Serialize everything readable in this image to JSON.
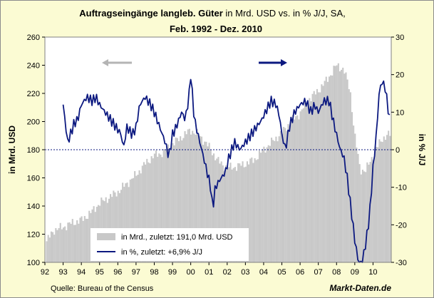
{
  "chart_data": {
    "type": "bar+line",
    "title_bold": "Auftragseingänge langleb. Güter",
    "title_normal": " in Mrd. USD vs. in % J/J, SA,",
    "subtitle": "Feb. 1992 - Dez. 2010",
    "ylabel_left": "in Mrd. USD",
    "ylabel_right": "in % J/J",
    "source": "Quelle: Bureau of the Census",
    "brand": "Markt-Daten.de",
    "x_categories": [
      "92",
      "93",
      "94",
      "95",
      "96",
      "97",
      "98",
      "99",
      "00",
      "01",
      "02",
      "03",
      "04",
      "05",
      "06",
      "07",
      "08",
      "09",
      "10"
    ],
    "y_left_ticks": [
      "100",
      "120",
      "140",
      "160",
      "180",
      "200",
      "220",
      "240",
      "260"
    ],
    "y_right_ticks": [
      "-30",
      "-20",
      "-10",
      "0",
      "10",
      "20",
      "30"
    ],
    "ylim_left": [
      100,
      260
    ],
    "ylim_right": [
      -30,
      30
    ],
    "zero_line": 0,
    "legend": [
      {
        "label": "in Mrd., zuletzt: 191,0  Mrd. USD",
        "kind": "bar"
      },
      {
        "label": "in %, zuletzt: +6,9% J/J",
        "kind": "line"
      }
    ],
    "colors": {
      "bars": "#c8c8c8",
      "line": "#0c1980",
      "arrow_left": "#b4b4b4",
      "arrow_right": "#0c1980",
      "background": "#fbfbd3"
    },
    "series": [
      {
        "name": "in Mrd. USD",
        "axis": "left",
        "monthly_anchors": [
          [
            1992.1,
            115
          ],
          [
            1992.5,
            123
          ],
          [
            1993.0,
            125
          ],
          [
            1993.5,
            128
          ],
          [
            1994.0,
            130
          ],
          [
            1994.5,
            135
          ],
          [
            1995.0,
            142
          ],
          [
            1995.5,
            146
          ],
          [
            1996.0,
            150
          ],
          [
            1996.5,
            156
          ],
          [
            1997.0,
            162
          ],
          [
            1997.5,
            170
          ],
          [
            1998.0,
            176
          ],
          [
            1998.5,
            178
          ],
          [
            1999.0,
            184
          ],
          [
            1999.5,
            189
          ],
          [
            2000.0,
            194
          ],
          [
            2000.5,
            190
          ],
          [
            2001.0,
            182
          ],
          [
            2001.5,
            172
          ],
          [
            2002.0,
            167
          ],
          [
            2002.5,
            168
          ],
          [
            2003.0,
            170
          ],
          [
            2003.5,
            173
          ],
          [
            2004.0,
            180
          ],
          [
            2004.5,
            186
          ],
          [
            2005.0,
            192
          ],
          [
            2005.5,
            200
          ],
          [
            2006.0,
            206
          ],
          [
            2006.5,
            216
          ],
          [
            2007.0,
            222
          ],
          [
            2007.5,
            230
          ],
          [
            2008.0,
            240
          ],
          [
            2008.4,
            237
          ],
          [
            2008.75,
            222
          ],
          [
            2009.0,
            190
          ],
          [
            2009.3,
            166
          ],
          [
            2009.6,
            165
          ],
          [
            2010.0,
            176
          ],
          [
            2010.5,
            188
          ],
          [
            2010.95,
            191
          ]
        ]
      },
      {
        "name": "in % J/J",
        "axis": "right",
        "monthly_anchors": [
          [
            1993.0,
            12
          ],
          [
            1993.1,
            8
          ],
          [
            1993.25,
            2
          ],
          [
            1993.4,
            4
          ],
          [
            1993.6,
            7
          ],
          [
            1993.8,
            8
          ],
          [
            1994.0,
            12
          ],
          [
            1994.3,
            14
          ],
          [
            1994.6,
            13
          ],
          [
            1994.8,
            14
          ],
          [
            1995.0,
            12
          ],
          [
            1995.3,
            10
          ],
          [
            1995.6,
            8
          ],
          [
            1995.9,
            6
          ],
          [
            1996.2,
            4
          ],
          [
            1996.3,
            0
          ],
          [
            1996.5,
            6
          ],
          [
            1996.8,
            4
          ],
          [
            1997.0,
            6
          ],
          [
            1997.2,
            12
          ],
          [
            1997.5,
            14
          ],
          [
            1997.8,
            12
          ],
          [
            1998.0,
            10
          ],
          [
            1998.3,
            6
          ],
          [
            1998.6,
            2
          ],
          [
            1998.8,
            -2
          ],
          [
            1999.0,
            4
          ],
          [
            1999.2,
            6
          ],
          [
            1999.5,
            10
          ],
          [
            1999.7,
            8
          ],
          [
            1999.9,
            14
          ],
          [
            2000.0,
            20
          ],
          [
            2000.2,
            8
          ],
          [
            2000.5,
            2
          ],
          [
            2000.7,
            -2
          ],
          [
            2000.9,
            -6
          ],
          [
            2001.1,
            -10
          ],
          [
            2001.2,
            -16
          ],
          [
            2001.35,
            -10
          ],
          [
            2001.6,
            -8
          ],
          [
            2001.9,
            -6
          ],
          [
            2002.1,
            -2
          ],
          [
            2002.4,
            2
          ],
          [
            2002.7,
            0
          ],
          [
            2003.0,
            2
          ],
          [
            2003.3,
            4
          ],
          [
            2003.6,
            6
          ],
          [
            2003.9,
            8
          ],
          [
            2004.1,
            10
          ],
          [
            2004.4,
            13
          ],
          [
            2004.7,
            12
          ],
          [
            2004.9,
            8
          ],
          [
            2005.0,
            4
          ],
          [
            2005.2,
            0
          ],
          [
            2005.4,
            6
          ],
          [
            2005.7,
            10
          ],
          [
            2006.0,
            12
          ],
          [
            2006.3,
            13
          ],
          [
            2006.6,
            10
          ],
          [
            2006.8,
            12
          ],
          [
            2007.0,
            10
          ],
          [
            2007.3,
            13
          ],
          [
            2007.6,
            13
          ],
          [
            2007.8,
            8
          ],
          [
            2008.0,
            4
          ],
          [
            2008.2,
            0
          ],
          [
            2008.4,
            -2
          ],
          [
            2008.6,
            -8
          ],
          [
            2008.8,
            -16
          ],
          [
            2009.0,
            -24
          ],
          [
            2009.2,
            -30
          ],
          [
            2009.4,
            -30
          ],
          [
            2009.6,
            -25
          ],
          [
            2009.8,
            -18
          ],
          [
            2010.0,
            -5
          ],
          [
            2010.2,
            5
          ],
          [
            2010.35,
            16
          ],
          [
            2010.5,
            18
          ],
          [
            2010.65,
            17
          ],
          [
            2010.8,
            12
          ],
          [
            2010.95,
            6.9
          ]
        ]
      }
    ]
  }
}
